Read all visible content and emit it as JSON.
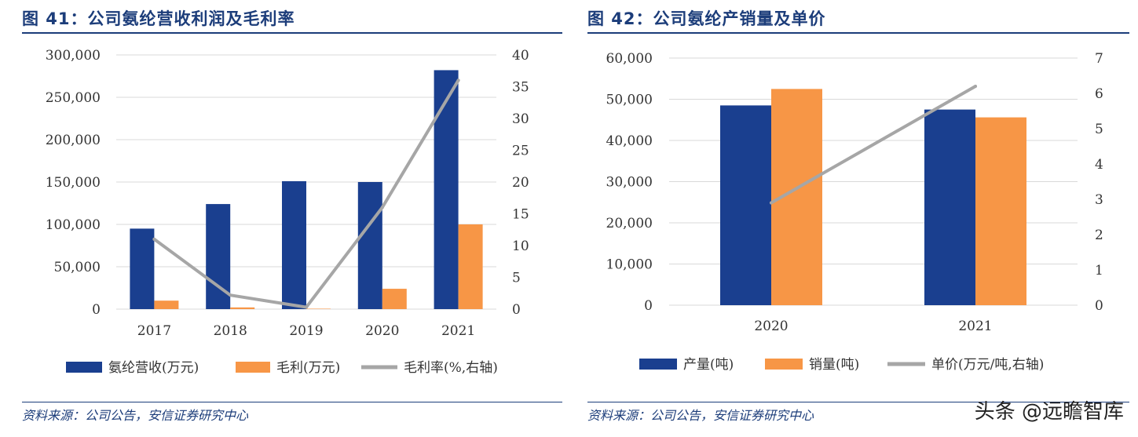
{
  "charts": [
    {
      "title": "图 41：公司氨纶营收利润及毛利率",
      "source": "资料来源：公司公告，安信证券研究中心"
    },
    {
      "title": "图 42：公司氨纶产销量及单价",
      "source": "资料来源：公司公告，安信证券研究中心"
    }
  ],
  "watermark": "头条 @远瞻智库",
  "chart_data": [
    {
      "type": "bar",
      "combo_line": true,
      "title": "图 41：公司氨纶营收利润及毛利率",
      "categories": [
        "2017",
        "2018",
        "2019",
        "2020",
        "2021"
      ],
      "series": [
        {
          "name": "氨纶营收(万元)",
          "axis": "left",
          "type": "bar",
          "color": "#1a3f8f",
          "values": [
            95000,
            124000,
            151000,
            150000,
            282000
          ]
        },
        {
          "name": "毛利(万元)",
          "axis": "left",
          "type": "bar",
          "color": "#f79646",
          "values": [
            10000,
            2000,
            500,
            24000,
            100000
          ]
        },
        {
          "name": "毛利率(%,右轴)",
          "axis": "right",
          "type": "line",
          "color": "#a6a6a6",
          "values": [
            11,
            2.2,
            0.3,
            16,
            36
          ]
        }
      ],
      "left_axis": {
        "range": [
          0,
          300000
        ],
        "ticks": [
          "0",
          "50,000",
          "100,000",
          "150,000",
          "200,000",
          "250,000",
          "300,000"
        ]
      },
      "right_axis": {
        "range": [
          0,
          40
        ],
        "ticks": [
          "0",
          "5",
          "10",
          "15",
          "20",
          "25",
          "30",
          "35",
          "40"
        ]
      },
      "grid": true,
      "legend_position": "bottom"
    },
    {
      "type": "bar",
      "combo_line": true,
      "title": "图 42：公司氨纶产销量及单价",
      "categories": [
        "2020",
        "2021"
      ],
      "series": [
        {
          "name": "产量(吨)",
          "axis": "left",
          "type": "bar",
          "color": "#1a3f8f",
          "values": [
            48500,
            47500
          ]
        },
        {
          "name": "销量(吨)",
          "axis": "left",
          "type": "bar",
          "color": "#f79646",
          "values": [
            52500,
            45600
          ]
        },
        {
          "name": "单价(万元/吨,右轴)",
          "axis": "right",
          "type": "line",
          "color": "#a6a6a6",
          "values": [
            2.9,
            6.2
          ]
        }
      ],
      "left_axis": {
        "range": [
          0,
          60000
        ],
        "ticks": [
          "0",
          "10,000",
          "20,000",
          "30,000",
          "40,000",
          "50,000",
          "60,000"
        ]
      },
      "right_axis": {
        "range": [
          0,
          7
        ],
        "ticks": [
          "0",
          "1",
          "2",
          "3",
          "4",
          "5",
          "6",
          "7"
        ]
      },
      "grid": true,
      "legend_position": "bottom"
    }
  ]
}
